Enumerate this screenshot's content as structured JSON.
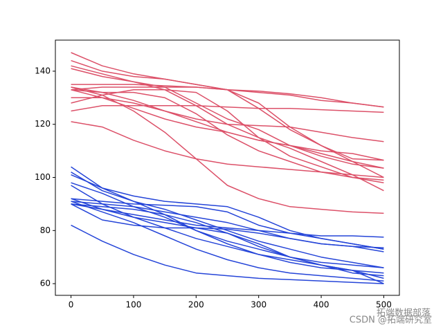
{
  "chart_data": {
    "type": "line",
    "x": [
      0,
      50,
      100,
      150,
      200,
      250,
      300,
      350,
      400,
      450,
      500
    ],
    "xlim": [
      -25,
      525
    ],
    "xticks": [
      0,
      100,
      200,
      300,
      400,
      500
    ],
    "ylim": [
      55.6,
      151.7
    ],
    "yticks": [
      60,
      80,
      100,
      120,
      140
    ],
    "grid": false,
    "series": [
      {
        "color": "#dc5068",
        "values": [
          147,
          142,
          139,
          137,
          135,
          133,
          126,
          118,
          112,
          106,
          100
        ]
      },
      {
        "color": "#dc5068",
        "values": [
          144,
          140,
          138,
          137,
          135,
          133,
          132,
          131,
          129,
          128,
          126.5
        ]
      },
      {
        "color": "#dc5068",
        "values": [
          141,
          138,
          136,
          134,
          128,
          122,
          118,
          112,
          108,
          105,
          103.5
        ]
      },
      {
        "color": "#dc5068",
        "values": [
          135,
          135,
          135,
          134.5,
          134,
          133,
          132.5,
          131.5,
          130,
          128,
          126.5
        ]
      },
      {
        "color": "#dc5068",
        "values": [
          125,
          127,
          127,
          127,
          127,
          126.5,
          126,
          126,
          125.5,
          125,
          124.5
        ]
      },
      {
        "color": "#dc5068",
        "values": [
          133,
          134,
          134,
          134,
          134,
          133,
          128,
          119,
          112,
          107,
          106.5
        ]
      },
      {
        "color": "#dc5068",
        "values": [
          133,
          130,
          126,
          122,
          119,
          117,
          114,
          112,
          109,
          106,
          103.5
        ]
      },
      {
        "color": "#dc5068",
        "values": [
          130,
          130,
          128,
          125,
          121,
          117,
          114,
          112,
          110,
          109,
          106.5
        ]
      },
      {
        "color": "#dc5068",
        "values": [
          133,
          132,
          132,
          130,
          124,
          116,
          110,
          106,
          102,
          100,
          99
        ]
      },
      {
        "color": "#dc5068",
        "values": [
          121,
          119,
          114,
          110,
          107,
          105,
          104,
          103,
          102,
          101,
          100
        ]
      },
      {
        "color": "#dc5068",
        "values": [
          128,
          131,
          133,
          133,
          132,
          125,
          115,
          108,
          104,
          100,
          98
        ]
      },
      {
        "color": "#dc5068",
        "values": [
          134,
          131,
          125,
          117,
          107,
          97,
          92,
          89,
          88,
          87,
          86.5
        ]
      },
      {
        "color": "#dc5068",
        "values": [
          142,
          139,
          136,
          133,
          127,
          120,
          115,
          111,
          106,
          101,
          95
        ]
      },
      {
        "color": "#dc5068",
        "values": [
          134,
          132,
          129,
          125,
          122,
          120,
          119.5,
          119,
          117,
          115,
          113.5
        ]
      },
      {
        "color": "#2444d8",
        "values": [
          104,
          96,
          93,
          91,
          90,
          89,
          85,
          80,
          77,
          75,
          73
        ]
      },
      {
        "color": "#2444d8",
        "values": [
          102,
          95,
          91,
          88,
          84,
          80,
          76,
          73,
          70,
          68,
          66
        ]
      },
      {
        "color": "#2444d8",
        "values": [
          101,
          96,
          91,
          86,
          80,
          75,
          71,
          68,
          66,
          65,
          64
        ]
      },
      {
        "color": "#2444d8",
        "values": [
          98,
          94,
          89,
          85,
          80,
          76,
          73,
          70,
          68,
          67,
          66
        ]
      },
      {
        "color": "#2444d8",
        "values": [
          97,
          90,
          85,
          81,
          77,
          74,
          71,
          69,
          67,
          65,
          62
        ]
      },
      {
        "color": "#2444d8",
        "values": [
          92,
          91,
          90,
          89.5,
          89,
          87,
          82,
          79,
          77,
          75,
          73
        ]
      },
      {
        "color": "#2444d8",
        "values": [
          91,
          90,
          89,
          87,
          85,
          83,
          80,
          77,
          75,
          74,
          72
        ]
      },
      {
        "color": "#2444d8",
        "values": [
          90,
          88,
          86,
          84,
          82,
          81,
          80,
          79,
          78,
          78,
          77.5
        ]
      },
      {
        "color": "#2444d8",
        "values": [
          90,
          84,
          82,
          81,
          81,
          80.5,
          79,
          77,
          75,
          74,
          73.5
        ]
      },
      {
        "color": "#2444d8",
        "values": [
          92,
          88,
          85,
          83,
          81,
          79,
          75,
          70,
          67,
          65,
          60
        ]
      },
      {
        "color": "#2444d8",
        "values": [
          82,
          76,
          71,
          67,
          64,
          63,
          62,
          61.5,
          61,
          60.5,
          60
        ]
      },
      {
        "color": "#2444d8",
        "values": [
          91,
          87,
          83,
          78,
          73,
          69,
          66,
          64,
          63,
          62,
          61
        ]
      },
      {
        "color": "#2444d8",
        "values": [
          90,
          89,
          88,
          86,
          83,
          79,
          74,
          70,
          67,
          64,
          63
        ]
      }
    ],
    "annotations": [
      "拓端数据部落",
      "CSDN @拓端研究室"
    ]
  }
}
